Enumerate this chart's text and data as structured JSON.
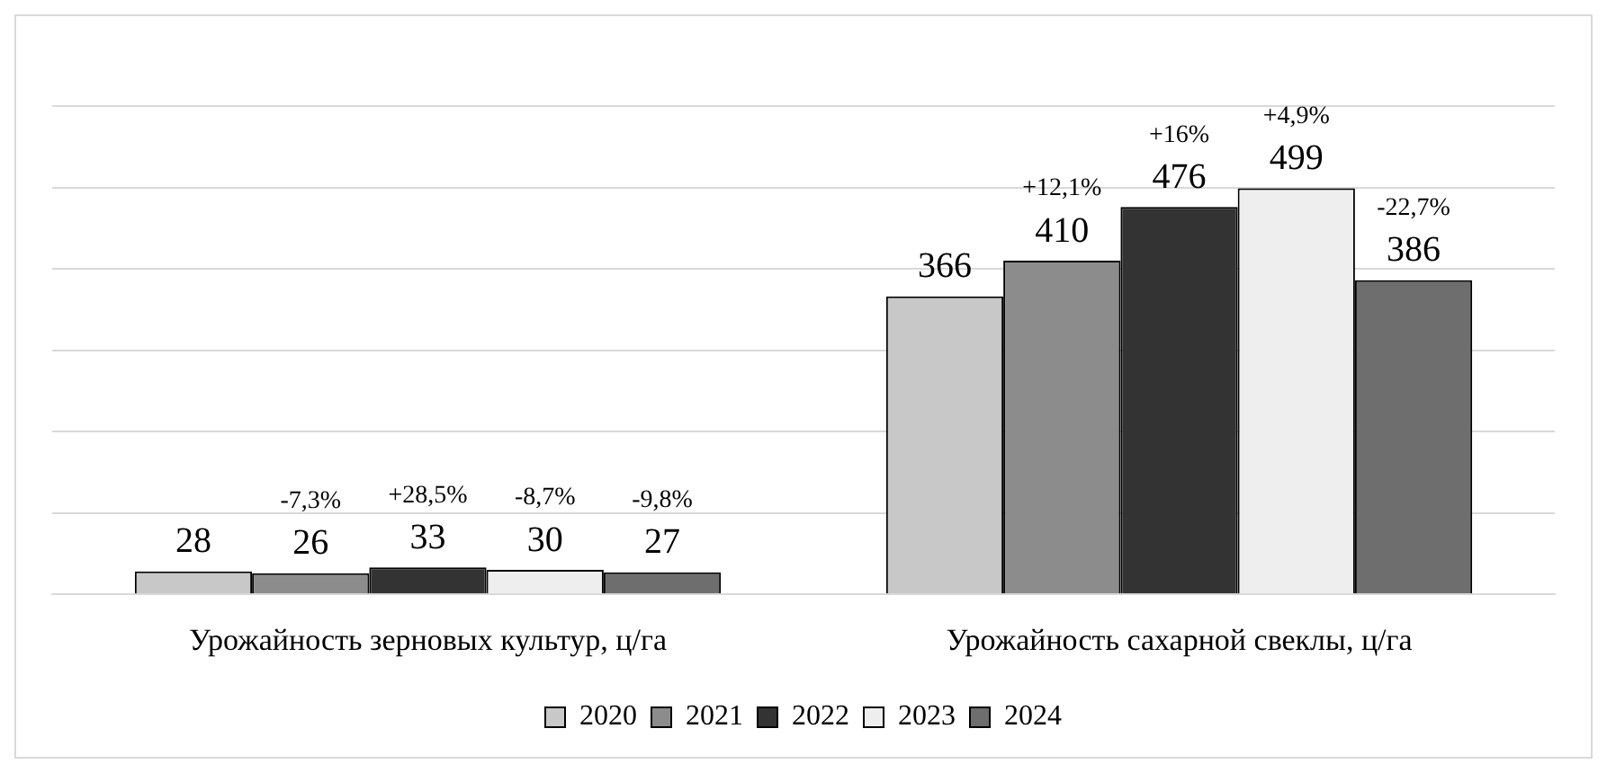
{
  "chart_data": {
    "type": "bar",
    "categories": [
      "Урожайность зерновых культур, ц/га",
      "Урожайность сахарной свеклы, ц/га"
    ],
    "series": [
      {
        "name": "2020",
        "color": "#c8c8c8",
        "values": [
          28,
          366
        ]
      },
      {
        "name": "2021",
        "color": "#8c8c8c",
        "values": [
          26,
          410
        ]
      },
      {
        "name": "2022",
        "color": "#333333",
        "values": [
          33,
          476
        ]
      },
      {
        "name": "2023",
        "color": "#eeeeee",
        "values": [
          30,
          499
        ]
      },
      {
        "name": "2024",
        "color": "#6e6e6e",
        "values": [
          27,
          386
        ]
      }
    ],
    "ylim": [
      0,
      600
    ],
    "yticks": [
      {
        "value": 0,
        "label": null
      },
      {
        "value": 100,
        "label": null
      },
      {
        "value": 200,
        "label": null
      },
      {
        "value": 300,
        "label": null
      },
      {
        "value": 400,
        "label": null
      },
      {
        "value": 500,
        "label": null
      },
      {
        "value": 600,
        "label": null
      }
    ],
    "tick_labels": "x",
    "grid": "y",
    "legend": "bottom",
    "data_labels": true,
    "annotations": [
      "-7,3%",
      "+28,5%",
      "-8,7%",
      "-9,8%",
      "+12,1%",
      "+16%",
      "+4,9%",
      "-22,7%"
    ]
  }
}
